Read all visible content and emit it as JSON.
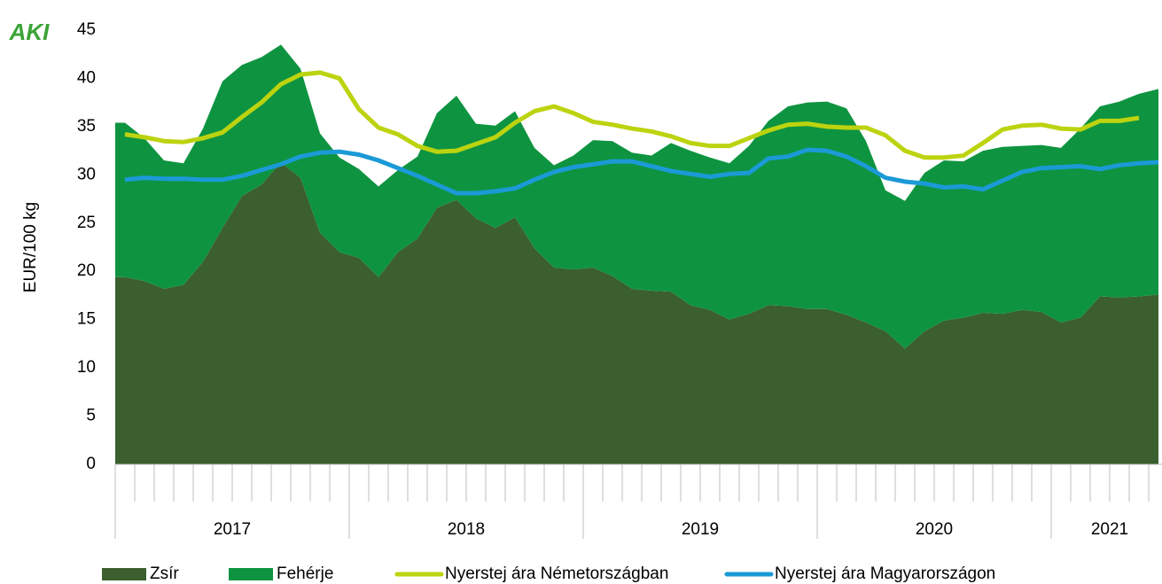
{
  "chart_data": {
    "type": "stacked-area-line",
    "logo": "AKI",
    "y_label": "EUR/100 kg",
    "categories": [
      null,
      null,
      null,
      null,
      null,
      null,
      null,
      null,
      null,
      null,
      null,
      null,
      null,
      null,
      null,
      null,
      null,
      null,
      null,
      null,
      null,
      null,
      null,
      null,
      null,
      null,
      null,
      null,
      null,
      null,
      null,
      null,
      null,
      null,
      null,
      null,
      null,
      null,
      null,
      null,
      null,
      null,
      null,
      null,
      null,
      null,
      null,
      null,
      null,
      null,
      null,
      null,
      null,
      null
    ],
    "groups": [
      {
        "label": "2017",
        "count": 12
      },
      {
        "label": "2018",
        "count": 12
      },
      {
        "label": "2019",
        "count": 12
      },
      {
        "label": "2020",
        "count": 12
      },
      {
        "label": "2021",
        "count": 6
      }
    ],
    "ylim": [
      0,
      45
    ],
    "yticks": [
      0,
      5,
      10,
      15,
      20,
      25,
      30,
      35,
      40,
      45
    ],
    "series": [
      {
        "name": "Zsír",
        "kind": "area",
        "color": "#3b5f2f",
        "values": [
          19.4,
          19.0,
          18.2,
          18.6,
          21.0,
          24.5,
          27.8,
          29.0,
          31.3,
          29.7,
          24.0,
          22.0,
          21.4,
          19.4,
          22.0,
          23.4,
          26.6,
          27.4,
          25.5,
          24.5,
          25.6,
          22.4,
          20.4,
          20.2,
          20.4,
          19.5,
          18.2,
          18.0,
          17.9,
          16.5,
          16.0,
          15.0,
          15.6,
          16.5,
          16.4,
          16.1,
          16.1,
          15.5,
          14.7,
          13.8,
          12.0,
          13.8,
          14.9,
          15.2,
          15.7,
          15.6,
          16.0,
          15.8,
          14.7,
          15.2,
          17.4,
          17.3,
          17.4,
          17.6
        ]
      },
      {
        "name": "Fehérje",
        "kind": "area",
        "color": "#0e9440",
        "values": [
          16.0,
          14.8,
          13.3,
          12.6,
          13.8,
          15.2,
          13.6,
          13.2,
          12.2,
          11.3,
          10.3,
          9.8,
          9.2,
          9.4,
          8.5,
          8.5,
          9.8,
          10.8,
          9.8,
          10.6,
          11.0,
          10.4,
          10.6,
          11.8,
          13.2,
          14.0,
          14.1,
          14.0,
          15.4,
          16.0,
          15.8,
          16.2,
          17.4,
          19.1,
          20.7,
          21.4,
          21.5,
          21.4,
          18.8,
          14.6,
          15.3,
          16.4,
          16.6,
          16.2,
          16.8,
          17.3,
          17.0,
          17.3,
          18.1,
          19.6,
          19.7,
          20.3,
          21.0,
          21.3
        ]
      },
      {
        "name": "Nyerstej ára Németországban",
        "kind": "line",
        "color": "#bcd30f",
        "values": [
          34.2,
          33.9,
          33.5,
          33.4,
          33.8,
          34.4,
          36.0,
          37.5,
          39.4,
          40.4,
          40.6,
          40.0,
          36.8,
          34.9,
          34.2,
          33.0,
          32.4,
          32.5,
          33.2,
          33.9,
          35.4,
          36.6,
          37.1,
          36.4,
          35.5,
          35.2,
          34.8,
          34.5,
          34.0,
          33.3,
          33.0,
          33.0,
          33.8,
          34.6,
          35.2,
          35.3,
          35.0,
          34.9,
          34.9,
          34.1,
          32.5,
          31.8,
          31.8,
          32.0,
          33.3,
          34.7,
          35.1,
          35.2,
          34.8,
          34.7,
          35.6,
          35.6,
          35.9,
          null
        ]
      },
      {
        "name": "Nyerstej ára Magyarországon",
        "kind": "line",
        "color": "#1b9ad6",
        "values": [
          29.5,
          29.7,
          29.6,
          29.6,
          29.5,
          29.5,
          29.9,
          30.5,
          31.1,
          31.9,
          32.3,
          32.4,
          32.1,
          31.5,
          30.7,
          29.9,
          29.0,
          28.1,
          28.1,
          28.3,
          28.6,
          29.5,
          30.3,
          30.8,
          31.1,
          31.4,
          31.4,
          30.9,
          30.4,
          30.1,
          29.8,
          30.1,
          30.2,
          31.7,
          31.9,
          32.6,
          32.5,
          31.9,
          30.9,
          29.7,
          29.3,
          29.1,
          28.7,
          28.8,
          28.5,
          29.4,
          30.3,
          30.7,
          30.8,
          30.9,
          30.6,
          31.0,
          31.2,
          31.3
        ]
      }
    ]
  }
}
